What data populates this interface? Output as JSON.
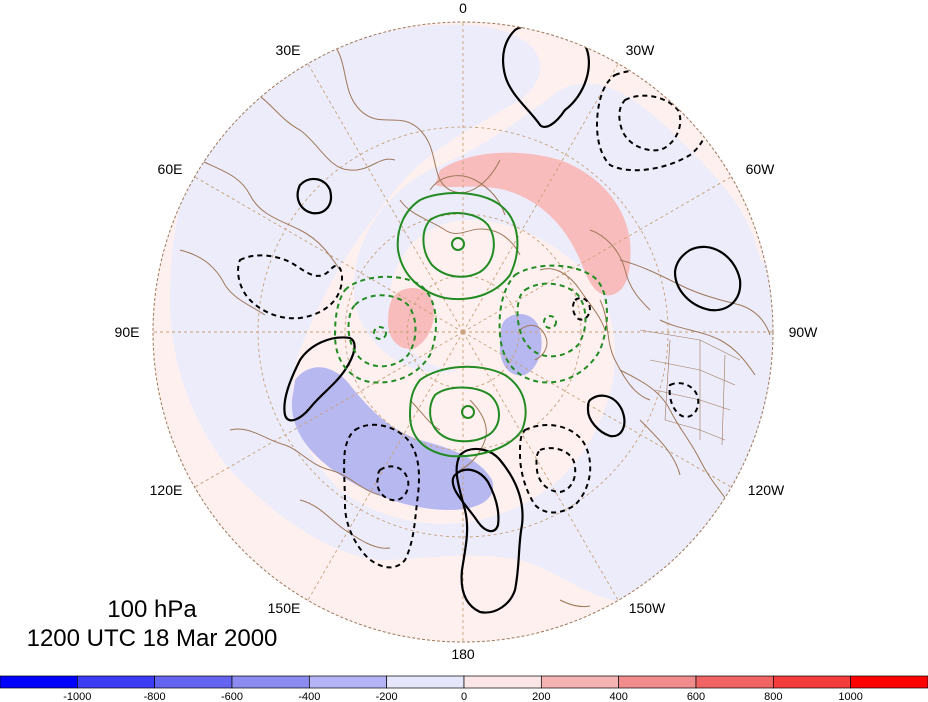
{
  "title": {
    "level": "100 hPa",
    "time": "1200 UTC 18 Mar 2000"
  },
  "longitude_labels": {
    "lon_0": "0",
    "lon_30w": "30W",
    "lon_60w": "60W",
    "lon_90w": "90W",
    "lon_120w": "120W",
    "lon_150w": "150W",
    "lon_180": "180",
    "lon_150e": "150E",
    "lon_120e": "120E",
    "lon_90e": "90E",
    "lon_60e": "60E",
    "lon_30e": "30E"
  },
  "colorbar": {
    "colors": [
      "#0000ff",
      "#3c3cf5",
      "#6464f0",
      "#8c8cf0",
      "#b4b4f5",
      "#e6e6fa",
      "#fae6e6",
      "#f5b4b4",
      "#f08c8c",
      "#f06464",
      "#f53c3c",
      "#ff0000"
    ],
    "tick_labels": [
      "-1000",
      "-800",
      "-600",
      "-400",
      "-200",
      "0",
      "200",
      "400",
      "600",
      "800",
      "1000"
    ]
  },
  "map_colors": {
    "land_outline": "#a0785a",
    "grid": "#c8a078",
    "positive_contour": "#000000",
    "negative_contour": "#000000",
    "green_contour": "#228b22",
    "base_fill": "#fdf0ef",
    "light_blue": "#ececfb",
    "pink": "#f8bcbc",
    "blue": "#b8b8f0"
  }
}
